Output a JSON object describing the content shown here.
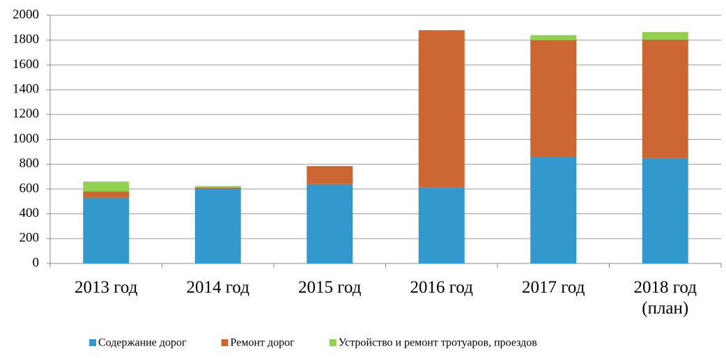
{
  "chart_data": {
    "type": "stacked_bar",
    "categories": [
      "2013 год",
      "2014 год",
      "2015 год",
      "2016 год",
      "2017 год",
      "2018 год (план)"
    ],
    "series": [
      {
        "name": "Содержание дорог",
        "color": "#3399cc",
        "values": [
          530,
          600,
          640,
          615,
          860,
          850
        ]
      },
      {
        "name": "Ремонт дорог",
        "color": "#cc6633",
        "values": [
          50,
          12,
          145,
          1265,
          940,
          955
        ]
      },
      {
        "name": "Устройство и ремонт тротуаров, проездов",
        "color": "#92d050",
        "values": [
          80,
          12,
          0,
          0,
          40,
          60
        ]
      }
    ],
    "ylim": [
      0,
      2000
    ],
    "yticks": [
      0,
      200,
      400,
      600,
      800,
      1000,
      1200,
      1400,
      1600,
      1800,
      2000
    ],
    "grid": true,
    "legend": "bottom"
  }
}
